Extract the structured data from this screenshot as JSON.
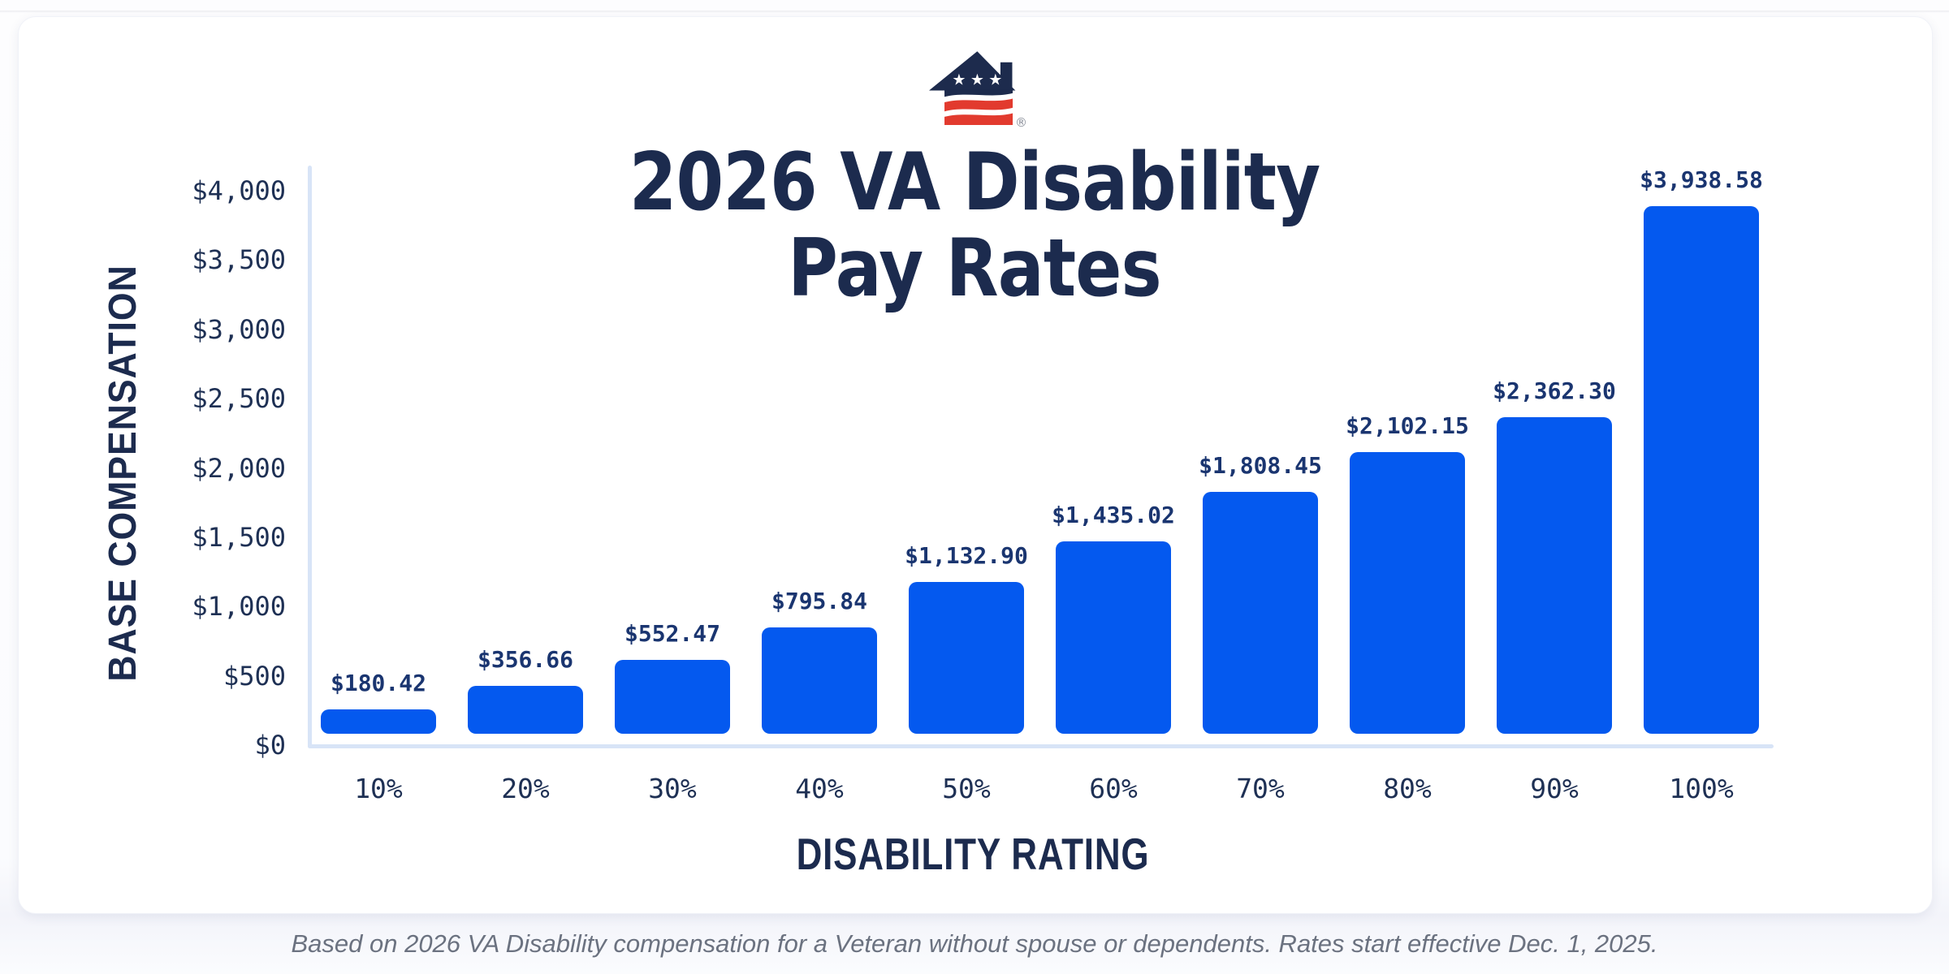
{
  "brand": {
    "logo_icon": "veterans-united-house-flag-logo",
    "registered_mark": "®",
    "logo_navy": "#1d2b4d",
    "logo_red": "#e23a2e"
  },
  "chart_data": {
    "type": "bar",
    "title": "2026 VA Disability Pay Rates",
    "title_lines": [
      "2026 VA Disability",
      "Pay Rates"
    ],
    "xlabel": "DISABILITY RATING",
    "ylabel": "BASE COMPENSATION",
    "categories": [
      "10%",
      "20%",
      "30%",
      "40%",
      "50%",
      "60%",
      "70%",
      "80%",
      "90%",
      "100%"
    ],
    "values": [
      180.42,
      356.66,
      552.47,
      795.84,
      1132.9,
      1435.02,
      1808.45,
      2102.15,
      2362.3,
      3938.58
    ],
    "value_labels": [
      "$180.42",
      "$356.66",
      "$552.47",
      "$795.84",
      "$1,132.90",
      "$1,435.02",
      "$1,808.45",
      "$2,102.15",
      "$2,362.30",
      "$3,938.58"
    ],
    "y_ticks": [
      "$0",
      "$500",
      "$1,000",
      "$1,500",
      "$2,000",
      "$2,500",
      "$3,000",
      "$3,500",
      "$4,000"
    ],
    "y_tick_values": [
      0,
      500,
      1000,
      1500,
      2000,
      2500,
      3000,
      3500,
      4000
    ],
    "ylim": [
      0,
      4000
    ],
    "grid": false,
    "legend_position": "none",
    "bar_color": "#0459ef",
    "axis_line_color": "#d8e4f7",
    "value_label_color": "#1a3570",
    "tick_label_color": "#1e3054",
    "title_color": "#1c2b4e"
  },
  "footnote": "Based on 2026 VA Disability compensation for a Veteran without spouse or dependents. Rates start effective Dec. 1, 2025."
}
